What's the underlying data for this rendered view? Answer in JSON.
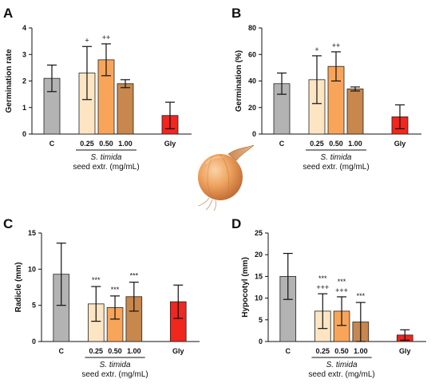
{
  "figure": {
    "group_label_species": "S. timida",
    "group_label_extract": "seed extr. (mg/mL)",
    "illustration": "onion-icon"
  },
  "chart_data": [
    {
      "panel": "A",
      "type": "bar",
      "ylabel": "Germination rate",
      "ylim": [
        0,
        4
      ],
      "yticks": [
        0,
        1,
        2,
        3,
        4
      ],
      "categories": [
        "C",
        "0.25",
        "0.50",
        "1.00",
        "Gly"
      ],
      "values": [
        2.1,
        2.3,
        2.8,
        1.9,
        0.7
      ],
      "errors": [
        0.5,
        1.0,
        0.6,
        0.15,
        0.5
      ],
      "colors": [
        "#b3b3b3",
        "#fde5c3",
        "#f8a55a",
        "#c8874d",
        "#f0261f"
      ],
      "annotations": [
        [
          "",
          ""
        ],
        [
          "+",
          ""
        ],
        [
          "++",
          ""
        ],
        [
          "",
          ""
        ],
        [
          "",
          ""
        ]
      ]
    },
    {
      "panel": "B",
      "type": "bar",
      "ylabel": "Germination (%)",
      "ylim": [
        0,
        80
      ],
      "yticks": [
        0,
        20,
        40,
        60,
        80
      ],
      "categories": [
        "C",
        "0.25",
        "0.50",
        "1.00",
        "Gly"
      ],
      "values": [
        38,
        41,
        51,
        34,
        13
      ],
      "errors": [
        8,
        18,
        11,
        1.5,
        9
      ],
      "colors": [
        "#b3b3b3",
        "#fde5c3",
        "#f8a55a",
        "#c8874d",
        "#f0261f"
      ],
      "annotations": [
        [
          "",
          ""
        ],
        [
          "+",
          ""
        ],
        [
          "++",
          ""
        ],
        [
          "",
          ""
        ],
        [
          "",
          ""
        ]
      ]
    },
    {
      "panel": "C",
      "type": "bar",
      "ylabel": "Radicle (mm)",
      "ylim": [
        0,
        15
      ],
      "yticks": [
        0,
        5,
        10,
        15
      ],
      "categories": [
        "C",
        "0.25",
        "0.50",
        "1.00",
        "Gly"
      ],
      "values": [
        9.3,
        5.2,
        4.7,
        6.2,
        5.5
      ],
      "errors": [
        4.3,
        2.4,
        1.6,
        2.0,
        2.3
      ],
      "colors": [
        "#b3b3b3",
        "#fde5c3",
        "#f8a55a",
        "#c8874d",
        "#f0261f"
      ],
      "annotations": [
        [
          "",
          ""
        ],
        [
          "***",
          ""
        ],
        [
          "***",
          ""
        ],
        [
          "***",
          ""
        ],
        [
          "",
          ""
        ]
      ]
    },
    {
      "panel": "D",
      "type": "bar",
      "ylabel": "Hypocotyl (mm)",
      "ylim": [
        0,
        25
      ],
      "yticks": [
        0,
        5,
        10,
        15,
        20,
        25
      ],
      "categories": [
        "C",
        "0.25",
        "0.50",
        "1.00",
        "Gly"
      ],
      "values": [
        15,
        7,
        7,
        4.5,
        1.5
      ],
      "errors": [
        5.3,
        4,
        3.3,
        4.5,
        1.2
      ],
      "colors": [
        "#b3b3b3",
        "#fde5c3",
        "#f8a55a",
        "#c8874d",
        "#f0261f"
      ],
      "annotations": [
        [
          "",
          ""
        ],
        [
          "***",
          "+++"
        ],
        [
          "***",
          "+++"
        ],
        [
          "***",
          ""
        ],
        [
          "",
          ""
        ]
      ]
    }
  ]
}
